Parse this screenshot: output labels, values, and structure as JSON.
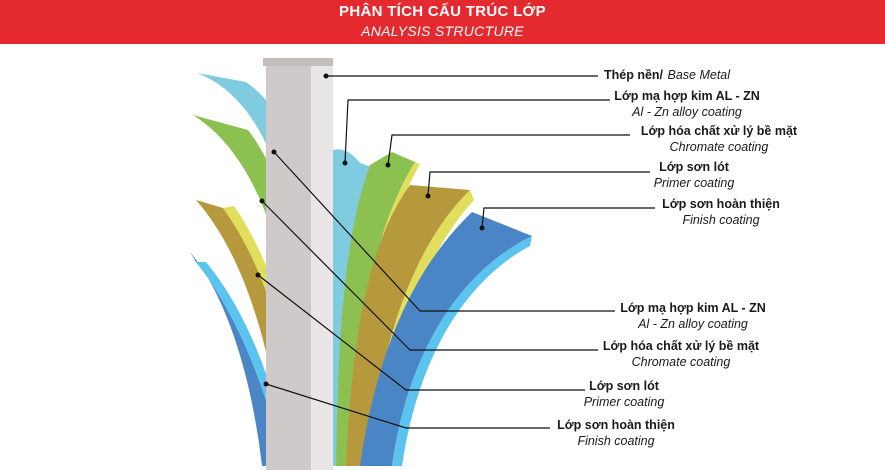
{
  "header": {
    "title": "PHÂN TÍCH CẤU TRÚC LỚP",
    "subtitle": "ANALYSIS STRUCTURE"
  },
  "colors": {
    "banner": "#e52a2f",
    "base_metal": "#cfcac9",
    "alloy": "#7fcbe0",
    "chromate": "#8cc152",
    "primer": "#b5993c",
    "finish": "#4a86c5",
    "yellow_stripe": "#e0de5a",
    "light_blue_stripe": "#5bc4ee"
  },
  "labels": {
    "base_metal": {
      "vi": "Thép nền/",
      "en": "Base Metal"
    },
    "right_alloy": {
      "vi": "Lớp mạ hợp kim AL - ZN",
      "en": "Al - Zn alloy coating"
    },
    "right_chromate": {
      "vi": "Lớp hóa chất xử lý bề mặt",
      "en": "Chromate coating"
    },
    "right_primer": {
      "vi": "Lớp sơn lót",
      "en": "Primer coating"
    },
    "right_finish": {
      "vi": "Lớp sơn hoàn thiện",
      "en": "Finish coating"
    },
    "left_alloy": {
      "vi": "Lớp mạ hợp kim AL - ZN",
      "en": "Al - Zn alloy coating"
    },
    "left_chromate": {
      "vi": "Lớp hóa chất xử lý bề mặt",
      "en": "Chromate coating"
    },
    "left_primer": {
      "vi": "Lớp sơn lót",
      "en": "Primer coating"
    },
    "left_finish": {
      "vi": "Lớp sơn hoàn thiện",
      "en": "Finish coating"
    }
  }
}
